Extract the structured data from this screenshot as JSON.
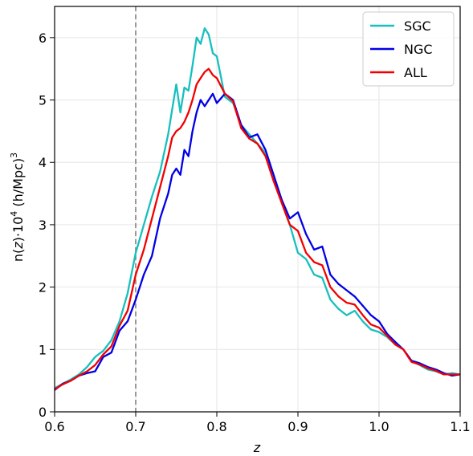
{
  "chart_data": {
    "type": "line",
    "xlabel": "z",
    "ylabel_parts": {
      "a": "n(",
      "b": "z",
      "c": ")·10",
      "d": "4",
      "e": " (h/Mpc)",
      "f": "3"
    },
    "xlim": [
      0.6,
      1.1
    ],
    "ylim": [
      0,
      6.5
    ],
    "xticks": [
      0.6,
      0.7,
      0.8,
      0.9,
      1.0,
      1.1
    ],
    "xtick_labels": [
      "0.6",
      "0.7",
      "0.8",
      "0.9",
      "1.0",
      "1.1"
    ],
    "yticks": [
      0,
      1,
      2,
      3,
      4,
      5,
      6
    ],
    "ytick_labels": [
      "0",
      "1",
      "2",
      "3",
      "4",
      "5",
      "6"
    ],
    "grid": true,
    "legend_position": "top-right",
    "vline": {
      "x": 0.7,
      "color": "#808080",
      "style": "dashed"
    },
    "series": [
      {
        "name": "SGC",
        "color": "#17bfbf",
        "x": [
          0.6,
          0.61,
          0.62,
          0.63,
          0.64,
          0.65,
          0.66,
          0.67,
          0.68,
          0.69,
          0.7,
          0.71,
          0.72,
          0.73,
          0.74,
          0.745,
          0.75,
          0.755,
          0.76,
          0.765,
          0.77,
          0.775,
          0.78,
          0.785,
          0.79,
          0.795,
          0.8,
          0.81,
          0.82,
          0.83,
          0.84,
          0.85,
          0.86,
          0.87,
          0.88,
          0.89,
          0.9,
          0.91,
          0.92,
          0.93,
          0.94,
          0.95,
          0.96,
          0.97,
          0.98,
          0.99,
          1.0,
          1.01,
          1.02,
          1.03,
          1.04,
          1.05,
          1.06,
          1.07,
          1.08,
          1.09,
          1.1
        ],
        "y": [
          0.38,
          0.45,
          0.52,
          0.6,
          0.72,
          0.88,
          0.98,
          1.15,
          1.45,
          1.9,
          2.55,
          3.0,
          3.45,
          3.85,
          4.45,
          4.85,
          5.25,
          4.8,
          5.2,
          5.15,
          5.55,
          6.0,
          5.9,
          6.15,
          6.05,
          5.75,
          5.7,
          5.05,
          4.95,
          4.6,
          4.45,
          4.3,
          4.15,
          3.8,
          3.35,
          3.0,
          2.55,
          2.45,
          2.2,
          2.15,
          1.8,
          1.65,
          1.55,
          1.62,
          1.45,
          1.32,
          1.28,
          1.2,
          1.08,
          1.0,
          0.82,
          0.75,
          0.68,
          0.65,
          0.6,
          0.62,
          0.6
        ]
      },
      {
        "name": "NGC",
        "color": "#0000e6",
        "x": [
          0.6,
          0.61,
          0.62,
          0.63,
          0.64,
          0.65,
          0.66,
          0.67,
          0.68,
          0.69,
          0.7,
          0.71,
          0.72,
          0.73,
          0.74,
          0.745,
          0.75,
          0.755,
          0.76,
          0.765,
          0.77,
          0.775,
          0.78,
          0.785,
          0.79,
          0.795,
          0.8,
          0.81,
          0.82,
          0.83,
          0.84,
          0.85,
          0.86,
          0.87,
          0.88,
          0.89,
          0.9,
          0.91,
          0.92,
          0.93,
          0.94,
          0.95,
          0.96,
          0.97,
          0.98,
          0.99,
          1.0,
          1.01,
          1.02,
          1.03,
          1.04,
          1.05,
          1.06,
          1.07,
          1.08,
          1.09,
          1.1
        ],
        "y": [
          0.35,
          0.45,
          0.5,
          0.58,
          0.62,
          0.65,
          0.88,
          0.95,
          1.3,
          1.45,
          1.8,
          2.2,
          2.5,
          3.1,
          3.5,
          3.8,
          3.9,
          3.8,
          4.2,
          4.1,
          4.5,
          4.8,
          5.0,
          4.9,
          5.0,
          5.1,
          4.95,
          5.1,
          5.0,
          4.6,
          4.4,
          4.45,
          4.2,
          3.8,
          3.4,
          3.1,
          3.2,
          2.85,
          2.6,
          2.65,
          2.2,
          2.05,
          1.95,
          1.85,
          1.7,
          1.55,
          1.45,
          1.25,
          1.12,
          1.0,
          0.82,
          0.78,
          0.72,
          0.68,
          0.62,
          0.58,
          0.6
        ]
      },
      {
        "name": "ALL",
        "color": "#f20000",
        "x": [
          0.6,
          0.61,
          0.62,
          0.63,
          0.64,
          0.65,
          0.66,
          0.67,
          0.68,
          0.69,
          0.7,
          0.71,
          0.72,
          0.73,
          0.74,
          0.745,
          0.75,
          0.755,
          0.76,
          0.765,
          0.77,
          0.775,
          0.78,
          0.785,
          0.79,
          0.795,
          0.8,
          0.81,
          0.82,
          0.83,
          0.84,
          0.85,
          0.86,
          0.87,
          0.88,
          0.89,
          0.9,
          0.91,
          0.92,
          0.93,
          0.94,
          0.95,
          0.96,
          0.97,
          0.98,
          0.99,
          1.0,
          1.01,
          1.02,
          1.03,
          1.04,
          1.05,
          1.06,
          1.07,
          1.08,
          1.09,
          1.1
        ],
        "y": [
          0.36,
          0.44,
          0.5,
          0.58,
          0.65,
          0.75,
          0.92,
          1.05,
          1.38,
          1.62,
          2.2,
          2.6,
          3.1,
          3.6,
          4.1,
          4.4,
          4.5,
          4.55,
          4.65,
          4.8,
          5.0,
          5.25,
          5.35,
          5.45,
          5.5,
          5.4,
          5.35,
          5.1,
          4.98,
          4.55,
          4.38,
          4.3,
          4.1,
          3.7,
          3.35,
          3.0,
          2.9,
          2.55,
          2.4,
          2.35,
          2.0,
          1.85,
          1.75,
          1.72,
          1.55,
          1.4,
          1.35,
          1.22,
          1.08,
          1.0,
          0.8,
          0.76,
          0.7,
          0.66,
          0.6,
          0.6,
          0.6
        ]
      }
    ]
  }
}
